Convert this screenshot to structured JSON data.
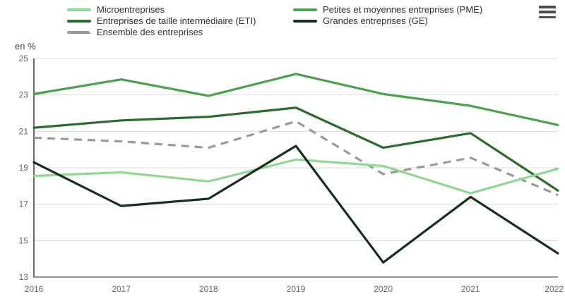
{
  "header": {
    "menu_icon": "hamburger"
  },
  "chart_data": {
    "type": "line",
    "title": "",
    "ylabel": "en %",
    "xlabel": "",
    "x": [
      "2016",
      "2017",
      "2018",
      "2019",
      "2020",
      "2021",
      "2022"
    ],
    "ylim": [
      13,
      25
    ],
    "yticks": [
      25,
      23,
      21,
      19,
      17,
      15,
      13
    ],
    "grid": true,
    "legend_position": "top-left-two-columns",
    "grid_color": "#d8d8d8",
    "axis_color": "#333333",
    "tick_label_color": "#666666",
    "series": [
      {
        "name": "Microentreprises",
        "color": "#90d695",
        "dashed": false,
        "values": [
          18.55,
          18.75,
          18.25,
          19.45,
          19.1,
          17.6,
          18.95
        ]
      },
      {
        "name": "Petites et moyennes entreprises (PME)",
        "color": "#4d9e51",
        "dashed": false,
        "values": [
          23.05,
          23.85,
          22.95,
          24.15,
          23.05,
          22.4,
          21.35
        ]
      },
      {
        "name": "Entreprises de taille intermédiaire (ETI)",
        "color": "#2b6a2f",
        "dashed": false,
        "values": [
          21.2,
          21.6,
          21.8,
          22.3,
          20.1,
          20.9,
          17.75
        ]
      },
      {
        "name": "Grandes entreprises (GE)",
        "color": "#182f1d",
        "dashed": false,
        "values": [
          19.3,
          16.9,
          17.3,
          20.2,
          13.8,
          17.4,
          14.3
        ]
      },
      {
        "name": "Ensemble des entreprises",
        "color": "#999999",
        "dashed": true,
        "values": [
          20.65,
          20.45,
          20.1,
          21.55,
          18.65,
          19.55,
          17.5
        ]
      }
    ],
    "legend_columns": [
      [
        0,
        2,
        4
      ],
      [
        1,
        3
      ]
    ]
  }
}
